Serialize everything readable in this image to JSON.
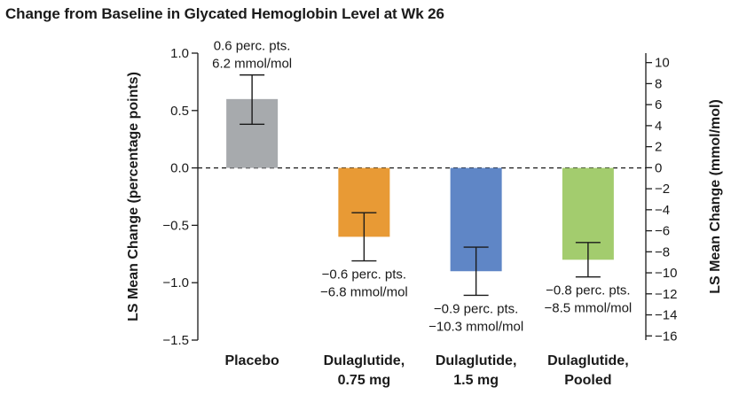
{
  "chart_data": {
    "type": "bar",
    "title": "Change from Baseline in Glycated Hemoglobin Level at Wk 26",
    "ylabel": "LS Mean Change (percentage points)",
    "ylabel_right": "LS Mean Change (mmol/mol)",
    "ylim": [
      -1.5,
      1.0
    ],
    "yticks": [
      1.0,
      0.5,
      0.0,
      -0.5,
      -1.0,
      -1.5
    ],
    "ytick_labels": [
      "1.0",
      "0.5",
      "0.0",
      "−0.5",
      "−1.0",
      "−1.5"
    ],
    "ylim_right": [
      -16.4,
      10.9
    ],
    "yticks_right": [
      10,
      8,
      6,
      4,
      2,
      0,
      -2,
      -4,
      -6,
      -8,
      -10,
      -12,
      -14,
      -16
    ],
    "ytick_labels_right": [
      "10",
      "8",
      "6",
      "4",
      "2",
      "0",
      "−2",
      "−4",
      "−6",
      "−8",
      "−10",
      "−12",
      "−14",
      "−16"
    ],
    "reference_line": 0.0,
    "categories": [
      [
        "Placebo"
      ],
      [
        "Dulaglutide,",
        "0.75 mg"
      ],
      [
        "Dulaglutide,",
        "1.5 mg"
      ],
      [
        "Dulaglutide,",
        "Pooled"
      ]
    ],
    "values": [
      0.6,
      -0.6,
      -0.9,
      -0.8
    ],
    "error_low": [
      0.38,
      -0.81,
      -1.11,
      -0.95
    ],
    "error_high": [
      0.81,
      -0.39,
      -0.69,
      -0.65
    ],
    "colors": [
      "#a7aaad",
      "#e89a35",
      "#5f86c6",
      "#a3cc6e"
    ],
    "data_labels": [
      [
        "0.6 perc. pts.",
        "6.2 mmol/mol"
      ],
      [
        "−0.6 perc. pts.",
        "−6.8 mmol/mol"
      ],
      [
        "−0.9 perc. pts.",
        "−10.3 mmol/mol"
      ],
      [
        "−0.8 perc. pts.",
        "−8.5 mmol/mol"
      ]
    ],
    "grid": false
  }
}
